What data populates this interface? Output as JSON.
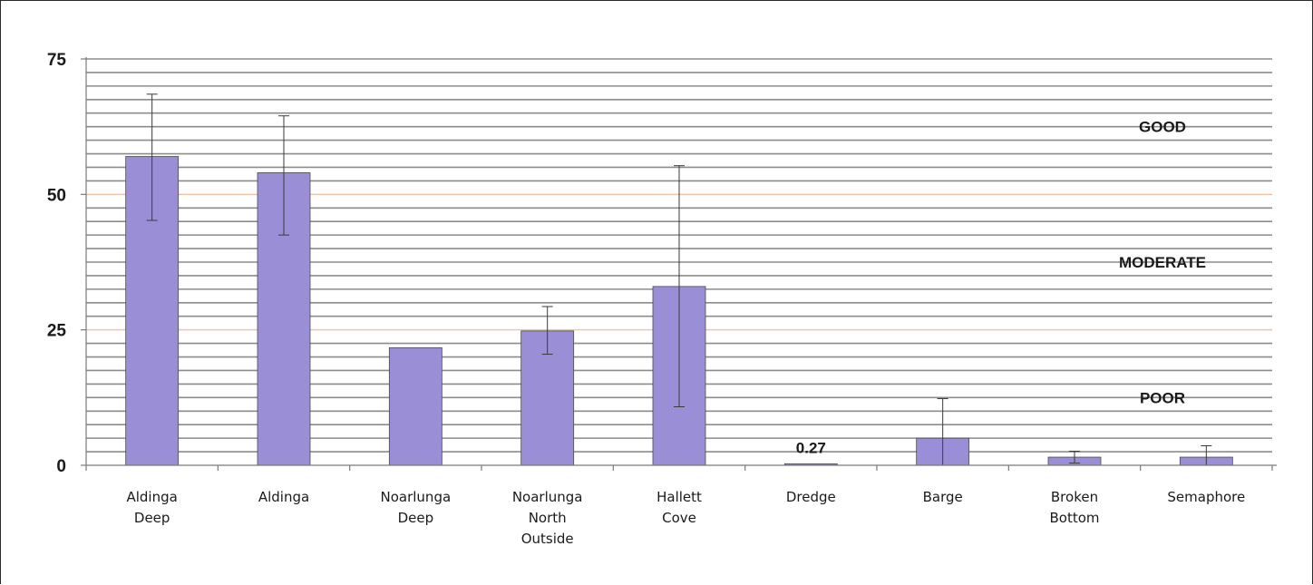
{
  "chart_data": {
    "type": "bar",
    "title": "",
    "xlabel": "",
    "ylabel": "",
    "ylim": [
      0,
      75
    ],
    "yticks": [
      0,
      25,
      50,
      75
    ],
    "grid": true,
    "bar_color": "#9a8fd6",
    "bar_edge_color": "#4a4a4a",
    "gridline_color": "#8c8c8c",
    "threshold_line_color": "#f0c4a8",
    "thresholds": [
      25,
      50
    ],
    "categories": [
      [
        "Aldinga",
        "Deep"
      ],
      [
        "Aldinga"
      ],
      [
        "Noarlunga",
        "Deep"
      ],
      [
        "Noarlunga",
        "North",
        "Outside"
      ],
      [
        "Hallett",
        "Cove"
      ],
      [
        "Dredge"
      ],
      [
        "Barge"
      ],
      [
        "Broken",
        "Bottom"
      ],
      [
        "Semaphore"
      ]
    ],
    "values": [
      57,
      54,
      21.7,
      24.8,
      33,
      0.27,
      5,
      1.5,
      1.5
    ],
    "error_upper": [
      68.5,
      64.5,
      null,
      29.3,
      55.3,
      null,
      12.3,
      2.6,
      3.6
    ],
    "error_lower": [
      45.2,
      42.5,
      null,
      20.5,
      10.8,
      null,
      0,
      0.4,
      0
    ],
    "data_labels": [
      {
        "category_index": 5,
        "text": "0.27"
      }
    ],
    "zone_labels": [
      {
        "text": "GOOD",
        "y": 62.5
      },
      {
        "text": "MODERATE",
        "y": 37.5
      },
      {
        "text": "POOR",
        "y": 12.5
      }
    ]
  }
}
